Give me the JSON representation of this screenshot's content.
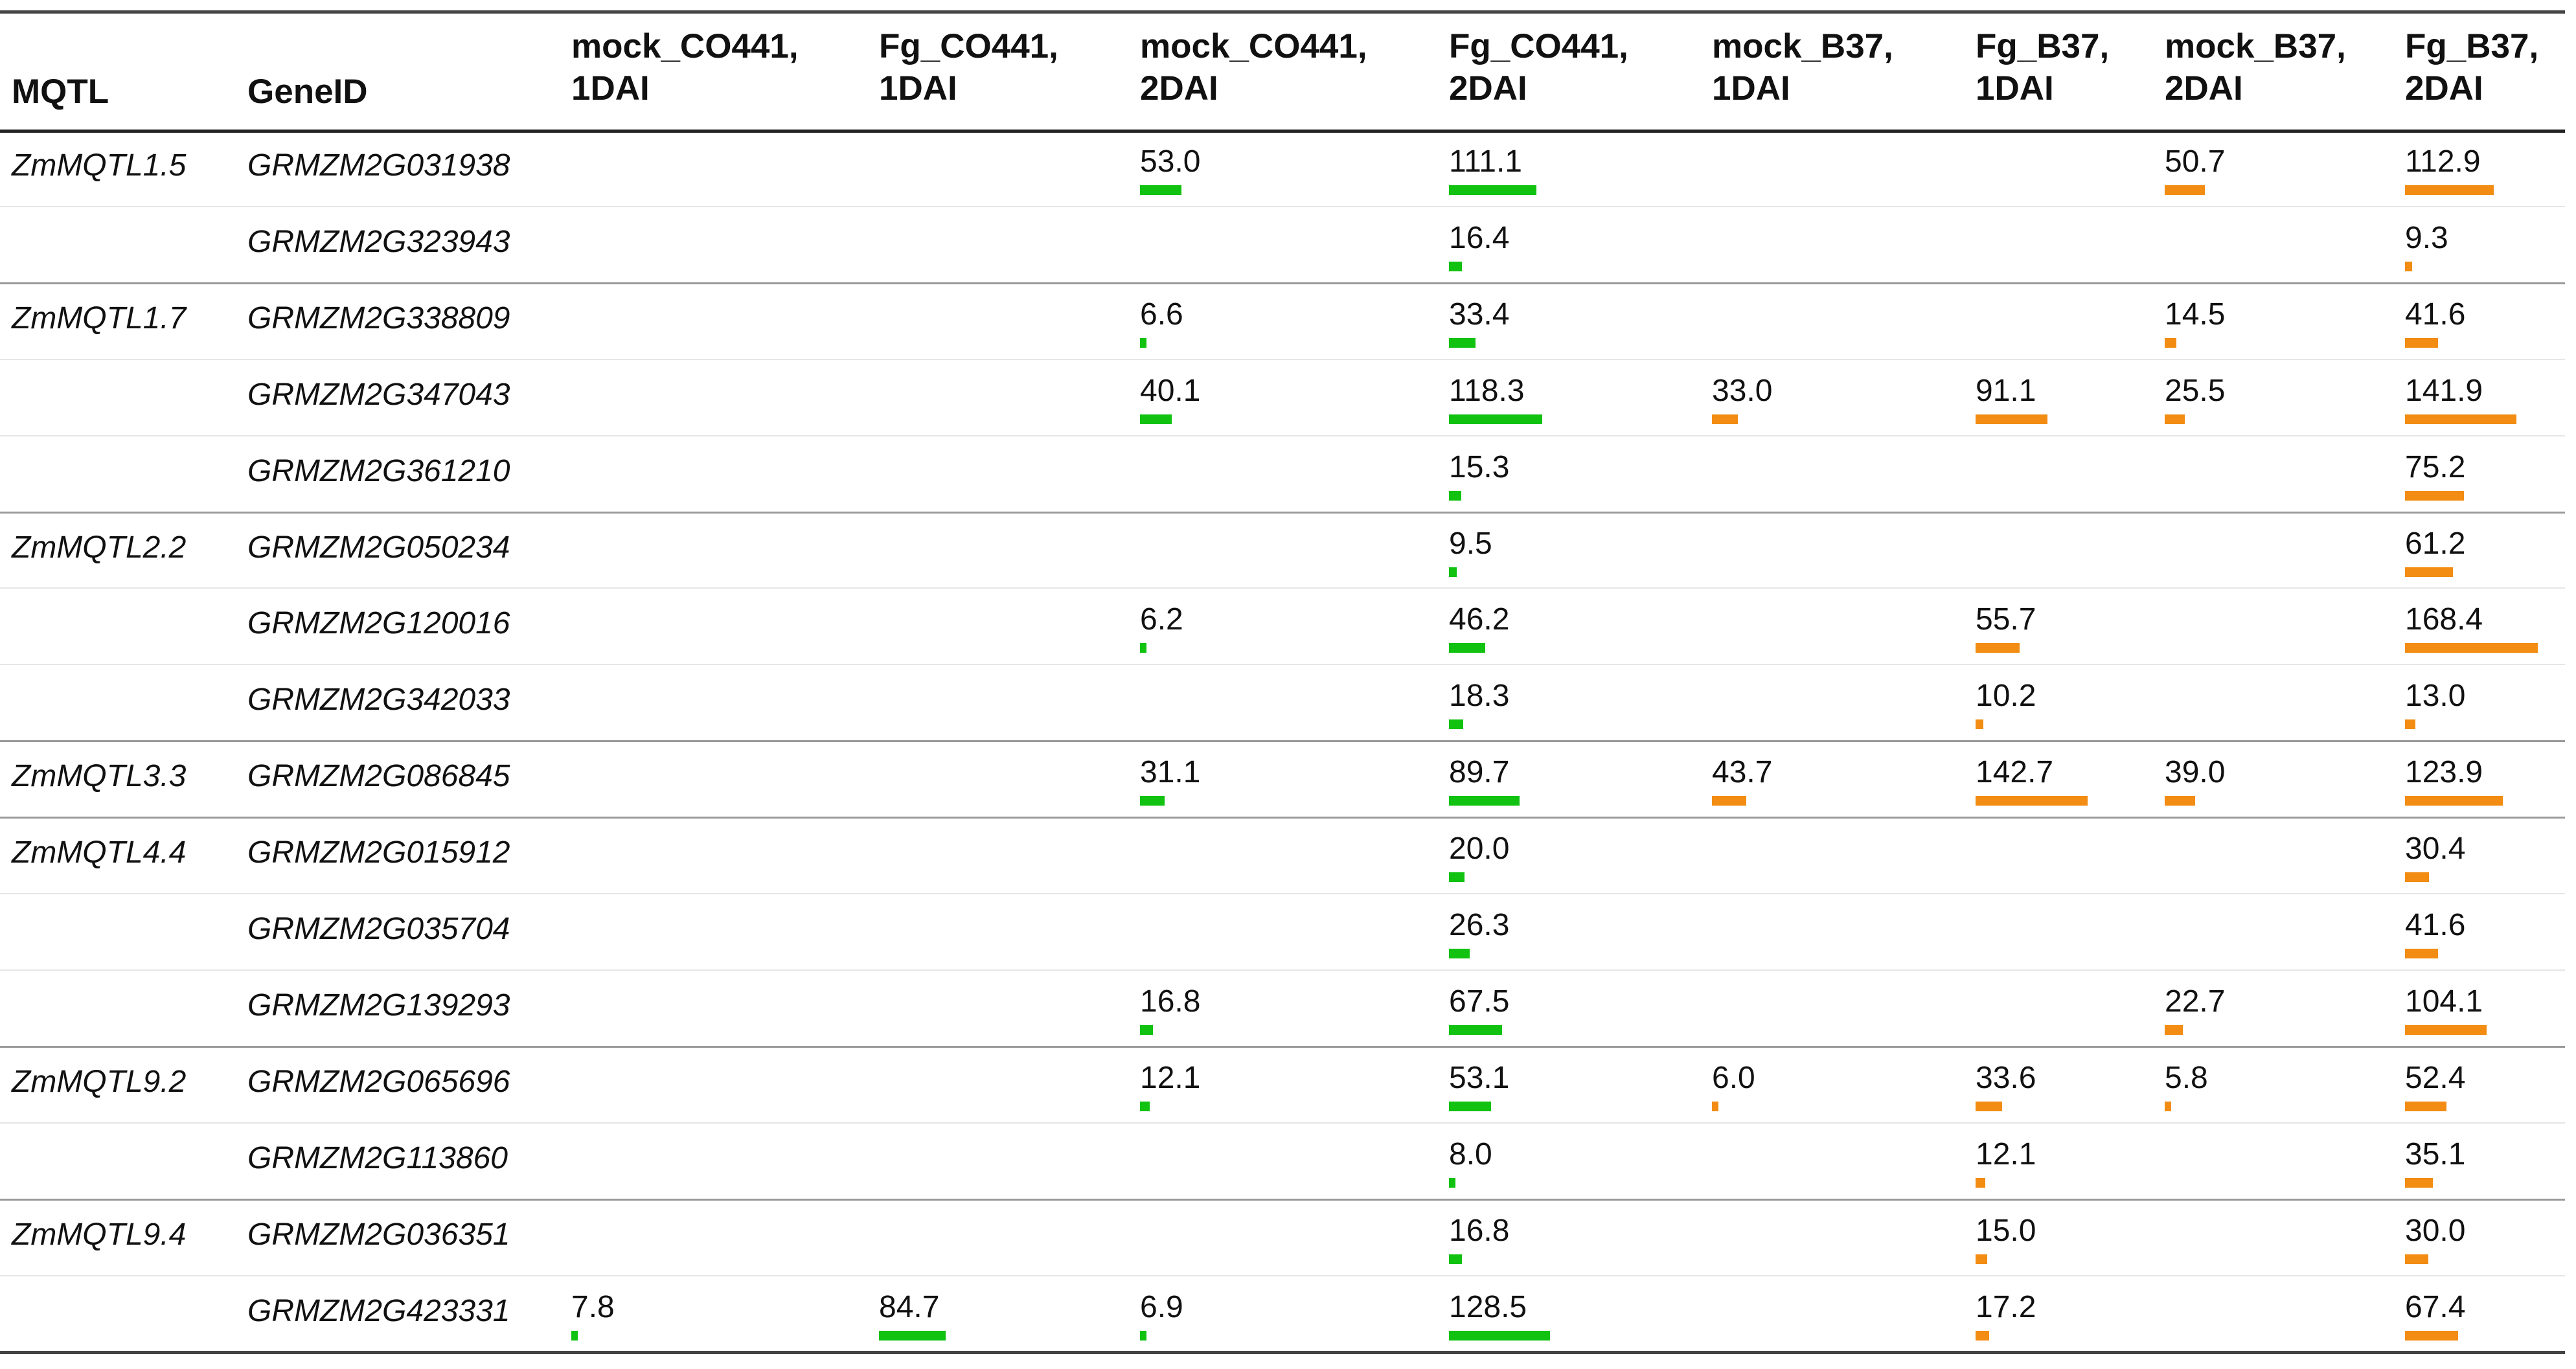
{
  "chart_data": {
    "type": "table",
    "columns": [
      {
        "label": "MQTL"
      },
      {
        "label": "GeneID"
      },
      {
        "label": "mock_CO441,\n1DAI",
        "color": "#11c211"
      },
      {
        "label": "Fg_CO441,\n1DAI",
        "color": "#11c211"
      },
      {
        "label": "mock_CO441,\n2DAI",
        "color": "#11c211"
      },
      {
        "label": "Fg_CO441,\n2DAI",
        "color": "#11c211"
      },
      {
        "label": "mock_B37,\n1DAI",
        "color": "#f28c12"
      },
      {
        "label": "Fg_B37,\n1DAI",
        "color": "#f28c12"
      },
      {
        "label": "mock_B37,\n2DAI",
        "color": "#f28c12"
      },
      {
        "label": "Fg_B37,\n2DAI",
        "color": "#f28c12"
      }
    ],
    "rows": [
      {
        "mqtl": "ZmMQTL1.5",
        "gene": "GRMZM2G031938",
        "values": [
          null,
          null,
          "53.0",
          "111.1",
          null,
          null,
          "50.7",
          "112.9"
        ]
      },
      {
        "mqtl": "",
        "gene": "GRMZM2G323943",
        "values": [
          null,
          null,
          null,
          "16.4",
          null,
          null,
          null,
          "9.3"
        ]
      },
      {
        "mqtl": "ZmMQTL1.7",
        "gene": "GRMZM2G338809",
        "values": [
          null,
          null,
          "6.6",
          "33.4",
          null,
          null,
          "14.5",
          "41.6"
        ]
      },
      {
        "mqtl": "",
        "gene": "GRMZM2G347043",
        "values": [
          null,
          null,
          "40.1",
          "118.3",
          "33.0",
          "91.1",
          "25.5",
          "141.9"
        ]
      },
      {
        "mqtl": "",
        "gene": "GRMZM2G361210",
        "values": [
          null,
          null,
          null,
          "15.3",
          null,
          null,
          null,
          "75.2"
        ]
      },
      {
        "mqtl": "ZmMQTL2.2",
        "gene": "GRMZM2G050234",
        "values": [
          null,
          null,
          null,
          "9.5",
          null,
          null,
          null,
          "61.2"
        ]
      },
      {
        "mqtl": "",
        "gene": "GRMZM2G120016",
        "values": [
          null,
          null,
          "6.2",
          "46.2",
          null,
          "55.7",
          null,
          "168.4"
        ]
      },
      {
        "mqtl": "",
        "gene": "GRMZM2G342033",
        "values": [
          null,
          null,
          null,
          "18.3",
          null,
          "10.2",
          null,
          "13.0"
        ]
      },
      {
        "mqtl": "ZmMQTL3.3",
        "gene": "GRMZM2G086845",
        "values": [
          null,
          null,
          "31.1",
          "89.7",
          "43.7",
          "142.7",
          "39.0",
          "123.9"
        ]
      },
      {
        "mqtl": "ZmMQTL4.4",
        "gene": "GRMZM2G015912",
        "values": [
          null,
          null,
          null,
          "20.0",
          null,
          null,
          null,
          "30.4"
        ]
      },
      {
        "mqtl": "",
        "gene": "GRMZM2G035704",
        "values": [
          null,
          null,
          null,
          "26.3",
          null,
          null,
          null,
          "41.6"
        ]
      },
      {
        "mqtl": "",
        "gene": "GRMZM2G139293",
        "values": [
          null,
          null,
          "16.8",
          "67.5",
          null,
          null,
          "22.7",
          "104.1"
        ]
      },
      {
        "mqtl": "ZmMQTL9.2",
        "gene": "GRMZM2G065696",
        "values": [
          null,
          null,
          "12.1",
          "53.1",
          "6.0",
          "33.6",
          "5.8",
          "52.4"
        ]
      },
      {
        "mqtl": "",
        "gene": "GRMZM2G113860",
        "values": [
          null,
          null,
          null,
          "8.0",
          null,
          "12.1",
          null,
          "35.1"
        ]
      },
      {
        "mqtl": "ZmMQTL9.4",
        "gene": "GRMZM2G036351",
        "values": [
          null,
          null,
          null,
          "16.8",
          null,
          "15.0",
          null,
          "30.0"
        ]
      },
      {
        "mqtl": "",
        "gene": "GRMZM2G423331",
        "values": [
          "7.8",
          "84.7",
          "6.9",
          "128.5",
          null,
          "17.2",
          null,
          "67.4"
        ]
      }
    ]
  }
}
